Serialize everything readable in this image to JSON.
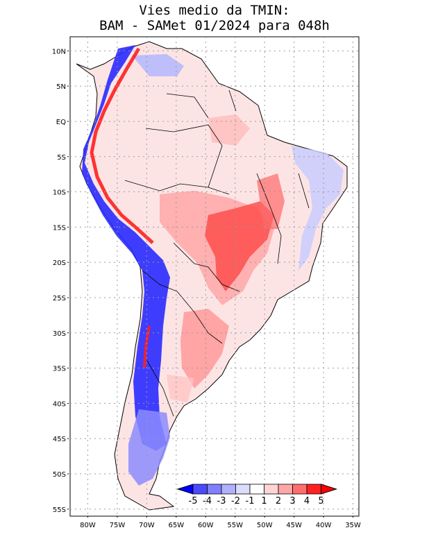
{
  "title": {
    "line1": "Vies medio da TMIN:",
    "line2": "BAM - SAMet 01/2024  para 048h"
  },
  "axes": {
    "lat_labels": [
      "10N",
      "5N",
      "EQ",
      "5S",
      "10S",
      "15S",
      "20S",
      "25S",
      "30S",
      "35S",
      "40S",
      "45S",
      "50S",
      "55S"
    ],
    "lon_labels": [
      "80W",
      "75W",
      "70W",
      "65W",
      "60W",
      "55W",
      "50W",
      "45W",
      "40W",
      "35W"
    ],
    "lat_range": [
      -56,
      12
    ],
    "lon_range": [
      -83,
      -34
    ]
  },
  "colorbar": {
    "labels": [
      "-5",
      "-4",
      "-3",
      "-2",
      "-1",
      "1",
      "2",
      "3",
      "4",
      "5"
    ],
    "colors": [
      "#0000ff",
      "#4a4aff",
      "#8080ff",
      "#b0b0ff",
      "#dcdcff",
      "#ffffff",
      "#ffd4d4",
      "#ffa6a6",
      "#ff6e6e",
      "#ff2020",
      "#ff0000"
    ]
  },
  "map": {
    "name": "South America TMIN bias",
    "land_color": "#fde7e7",
    "warm_color": "#ff5a5a",
    "cold_color": "#2020ff"
  }
}
